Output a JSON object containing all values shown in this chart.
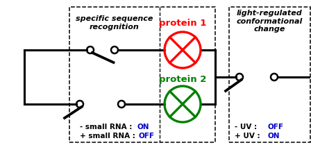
{
  "figsize": [
    4.48,
    2.19
  ],
  "dpi": 100,
  "bg_color": "#ffffff",
  "text_specific_seq": "specific sequence\nrecognition",
  "text_light_reg": "light-regulated\nconformational\nchange",
  "text_protein1": "protein 1",
  "text_protein2": "protein 2",
  "text_small_rna_on": "- small RNA : ",
  "text_small_rna_on_val": "ON",
  "text_small_rna_off": "+ small RNA : ",
  "text_small_rna_off_val": "OFF",
  "text_uv_off": "- UV : ",
  "text_uv_off_val": "OFF",
  "text_uv_on": "+ UV : ",
  "text_uv_on_val": "ON",
  "color_red": "#ff0000",
  "color_green": "#008000",
  "color_blue": "#0000cc",
  "color_black": "#000000"
}
